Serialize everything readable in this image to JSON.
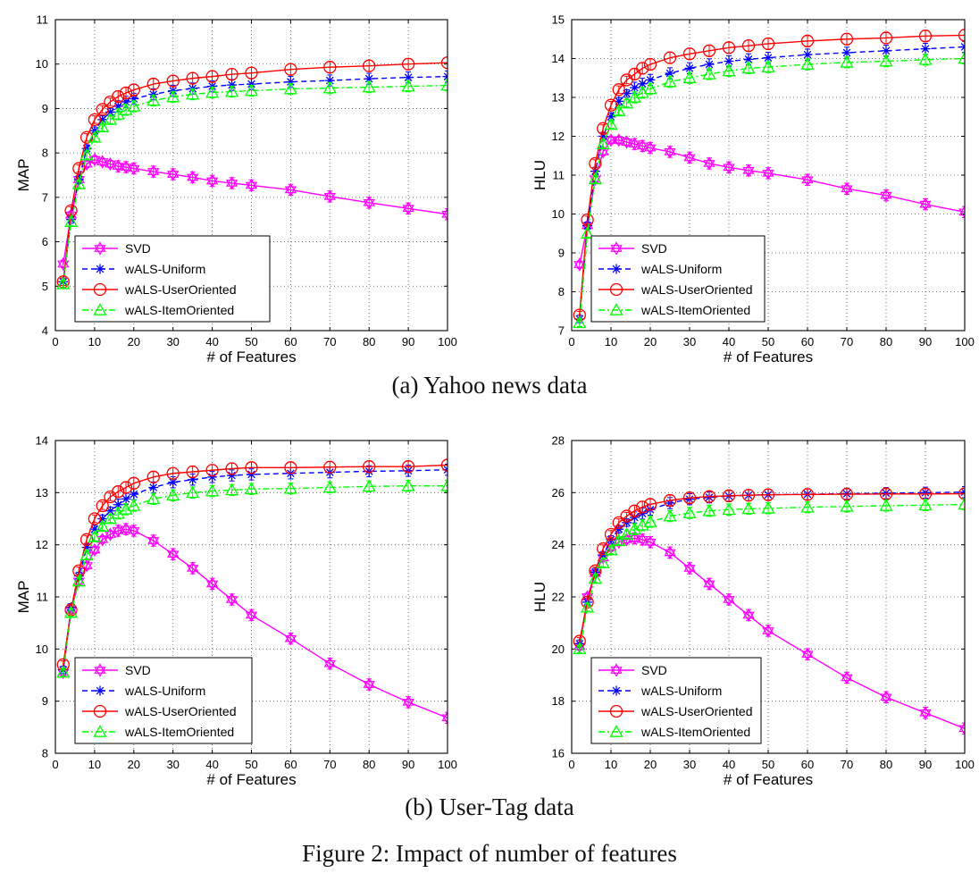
{
  "figure": {
    "caption": "Figure 2: Impact of number of features",
    "subcaption_a": "(a) Yahoo news data",
    "subcaption_b": "(b) User-Tag data"
  },
  "series_styles": [
    {
      "name": "SVD",
      "color": "#ff00ff",
      "marker": "hexagram",
      "dash": "solid"
    },
    {
      "name": "wALS-Uniform",
      "color": "#0000ff",
      "marker": "asterisk",
      "dash": "dashed"
    },
    {
      "name": "wALS-UserOriented",
      "color": "#ff0000",
      "marker": "circle",
      "dash": "solid"
    },
    {
      "name": "wALS-ItemOriented",
      "color": "#00ff00",
      "marker": "triangle",
      "dash": "dashdot"
    }
  ],
  "chart_data": [
    {
      "type": "line",
      "panel": "yahoo-map",
      "xlabel": "# of Features",
      "ylabel": "MAP",
      "xlim": [
        0,
        100
      ],
      "ylim": [
        4,
        11
      ],
      "xticks": [
        0,
        10,
        20,
        30,
        40,
        50,
        60,
        70,
        80,
        90,
        100
      ],
      "yticks": [
        4,
        5,
        6,
        7,
        8,
        9,
        10,
        11
      ],
      "grid": true,
      "legend_position": "lower-left",
      "x": [
        2,
        4,
        6,
        8,
        10,
        12,
        14,
        16,
        18,
        20,
        25,
        30,
        35,
        40,
        45,
        50,
        60,
        70,
        80,
        90,
        100
      ],
      "series": [
        {
          "name": "SVD",
          "values": [
            5.5,
            6.6,
            7.4,
            7.75,
            7.85,
            7.8,
            7.75,
            7.7,
            7.68,
            7.65,
            7.58,
            7.52,
            7.45,
            7.37,
            7.32,
            7.27,
            7.17,
            7.02,
            6.88,
            6.75,
            6.62
          ]
        },
        {
          "name": "wALS-Uniform",
          "values": [
            5.1,
            6.5,
            7.4,
            8.1,
            8.5,
            8.75,
            8.92,
            9.05,
            9.15,
            9.22,
            9.32,
            9.4,
            9.45,
            9.5,
            9.53,
            9.55,
            9.6,
            9.63,
            9.67,
            9.7,
            9.72
          ]
        },
        {
          "name": "wALS-UserOriented",
          "values": [
            5.1,
            6.7,
            7.65,
            8.35,
            8.75,
            8.98,
            9.15,
            9.27,
            9.35,
            9.42,
            9.55,
            9.62,
            9.68,
            9.72,
            9.77,
            9.8,
            9.88,
            9.93,
            9.96,
            10.0,
            10.03
          ]
        },
        {
          "name": "wALS-ItemOriented",
          "values": [
            5.05,
            6.45,
            7.3,
            7.95,
            8.35,
            8.58,
            8.75,
            8.87,
            8.97,
            9.05,
            9.18,
            9.26,
            9.32,
            9.36,
            9.38,
            9.4,
            9.44,
            9.46,
            9.48,
            9.5,
            9.52
          ]
        }
      ]
    },
    {
      "type": "line",
      "panel": "yahoo-hlu",
      "xlabel": "# of Features",
      "ylabel": "HLU",
      "xlim": [
        0,
        100
      ],
      "ylim": [
        7,
        15
      ],
      "xticks": [
        0,
        10,
        20,
        30,
        40,
        50,
        60,
        70,
        80,
        90,
        100
      ],
      "yticks": [
        7,
        8,
        9,
        10,
        11,
        12,
        13,
        14,
        15
      ],
      "grid": true,
      "legend_position": "lower-left",
      "x": [
        2,
        4,
        6,
        8,
        10,
        12,
        14,
        16,
        18,
        20,
        25,
        30,
        35,
        40,
        45,
        50,
        60,
        70,
        80,
        90,
        100
      ],
      "series": [
        {
          "name": "SVD",
          "values": [
            8.7,
            9.7,
            10.9,
            11.6,
            11.9,
            11.9,
            11.85,
            11.8,
            11.75,
            11.7,
            11.6,
            11.45,
            11.3,
            11.2,
            11.12,
            11.05,
            10.88,
            10.65,
            10.48,
            10.25,
            10.05
          ]
        },
        {
          "name": "wALS-Uniform",
          "values": [
            7.3,
            9.7,
            11.1,
            12.0,
            12.5,
            12.9,
            13.1,
            13.25,
            13.35,
            13.45,
            13.62,
            13.75,
            13.85,
            13.93,
            13.98,
            14.02,
            14.1,
            14.15,
            14.2,
            14.25,
            14.3
          ]
        },
        {
          "name": "wALS-UserOriented",
          "values": [
            7.4,
            9.85,
            11.3,
            12.2,
            12.8,
            13.2,
            13.45,
            13.6,
            13.75,
            13.85,
            14.02,
            14.12,
            14.2,
            14.28,
            14.33,
            14.38,
            14.45,
            14.5,
            14.53,
            14.58,
            14.6
          ]
        },
        {
          "name": "wALS-ItemOriented",
          "values": [
            7.2,
            9.5,
            10.9,
            11.8,
            12.3,
            12.65,
            12.85,
            13.0,
            13.12,
            13.22,
            13.4,
            13.5,
            13.6,
            13.68,
            13.75,
            13.78,
            13.85,
            13.9,
            13.93,
            13.97,
            14.0
          ]
        }
      ]
    },
    {
      "type": "line",
      "panel": "usertag-map",
      "xlabel": "# of Features",
      "ylabel": "MAP",
      "xlim": [
        0,
        100
      ],
      "ylim": [
        8,
        14
      ],
      "xticks": [
        0,
        10,
        20,
        30,
        40,
        50,
        60,
        70,
        80,
        90,
        100
      ],
      "yticks": [
        8,
        9,
        10,
        11,
        12,
        13,
        14
      ],
      "grid": true,
      "legend_position": "lower-left",
      "x": [
        2,
        4,
        6,
        8,
        10,
        12,
        14,
        16,
        18,
        20,
        25,
        30,
        35,
        40,
        45,
        50,
        60,
        70,
        80,
        90,
        100
      ],
      "series": [
        {
          "name": "SVD",
          "values": [
            9.55,
            10.75,
            11.3,
            11.6,
            11.9,
            12.1,
            12.2,
            12.27,
            12.3,
            12.27,
            12.08,
            11.82,
            11.55,
            11.25,
            10.95,
            10.65,
            10.2,
            9.72,
            9.32,
            8.98,
            8.68
          ]
        },
        {
          "name": "wALS-Uniform",
          "values": [
            9.6,
            10.8,
            11.4,
            11.95,
            12.3,
            12.5,
            12.65,
            12.77,
            12.88,
            12.97,
            13.1,
            13.2,
            13.25,
            13.3,
            13.33,
            13.35,
            13.37,
            13.39,
            13.41,
            13.42,
            13.44
          ]
        },
        {
          "name": "wALS-UserOriented",
          "values": [
            9.7,
            10.75,
            11.5,
            12.1,
            12.5,
            12.75,
            12.92,
            13.02,
            13.1,
            13.18,
            13.3,
            13.37,
            13.4,
            13.43,
            13.46,
            13.48,
            13.48,
            13.49,
            13.5,
            13.5,
            13.53
          ]
        },
        {
          "name": "wALS-ItemOriented",
          "values": [
            9.55,
            10.7,
            11.3,
            11.8,
            12.15,
            12.35,
            12.5,
            12.6,
            12.68,
            12.75,
            12.88,
            12.95,
            13.0,
            13.03,
            13.05,
            13.07,
            13.08,
            13.1,
            13.12,
            13.13,
            13.13
          ]
        }
      ]
    },
    {
      "type": "line",
      "panel": "usertag-hlu",
      "xlabel": "# of Features",
      "ylabel": "HLU",
      "xlim": [
        0,
        100
      ],
      "ylim": [
        16,
        28
      ],
      "xticks": [
        0,
        10,
        20,
        30,
        40,
        50,
        60,
        70,
        80,
        90,
        100
      ],
      "yticks": [
        16,
        18,
        20,
        22,
        24,
        26,
        28
      ],
      "grid": true,
      "legend_position": "lower-left",
      "x": [
        2,
        4,
        6,
        8,
        10,
        12,
        14,
        16,
        18,
        20,
        25,
        30,
        35,
        40,
        45,
        50,
        60,
        70,
        80,
        90,
        100
      ],
      "series": [
        {
          "name": "SVD",
          "values": [
            20.1,
            22.0,
            22.9,
            23.5,
            23.9,
            24.1,
            24.2,
            24.25,
            24.2,
            24.1,
            23.7,
            23.1,
            22.5,
            21.9,
            21.3,
            20.7,
            19.8,
            18.9,
            18.15,
            17.55,
            16.95
          ]
        },
        {
          "name": "wALS-Uniform",
          "values": [
            20.2,
            21.8,
            22.95,
            23.6,
            24.2,
            24.6,
            24.85,
            25.05,
            25.2,
            25.35,
            25.6,
            25.75,
            25.82,
            25.87,
            25.9,
            25.92,
            25.94,
            25.96,
            25.98,
            26.0,
            26.02
          ]
        },
        {
          "name": "wALS-UserOriented",
          "values": [
            20.3,
            21.8,
            23.0,
            23.85,
            24.4,
            24.85,
            25.1,
            25.3,
            25.45,
            25.55,
            25.7,
            25.8,
            25.85,
            25.88,
            25.9,
            25.92,
            25.93,
            25.94,
            25.95,
            25.95,
            25.96
          ]
        },
        {
          "name": "wALS-ItemOriented",
          "values": [
            20.0,
            21.6,
            22.7,
            23.3,
            23.8,
            24.15,
            24.4,
            24.6,
            24.75,
            24.88,
            25.1,
            25.22,
            25.3,
            25.35,
            25.38,
            25.4,
            25.44,
            25.47,
            25.5,
            25.52,
            25.55
          ]
        }
      ]
    }
  ]
}
